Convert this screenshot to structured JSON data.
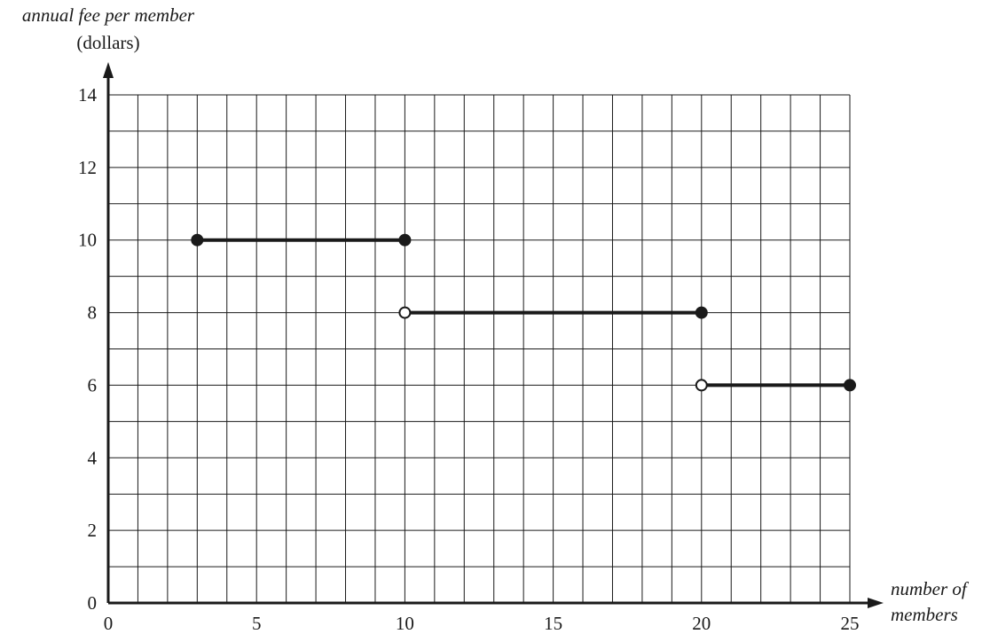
{
  "chart_data": {
    "type": "line",
    "ylabel": [
      "annual fee per member",
      "(dollars)"
    ],
    "xlabel": [
      "number of",
      "members"
    ],
    "xlim": [
      0,
      25
    ],
    "ylim": [
      0,
      14
    ],
    "x_ticks": [
      0,
      5,
      10,
      15,
      20,
      25
    ],
    "y_ticks": [
      0,
      2,
      4,
      6,
      8,
      10,
      12,
      14
    ],
    "grid": true,
    "grid_step_x": 1,
    "grid_step_y": 1,
    "series": [
      {
        "x": [
          3,
          10
        ],
        "y": [
          10,
          10
        ],
        "endpoints": [
          "closed",
          "closed"
        ]
      },
      {
        "x": [
          10,
          20
        ],
        "y": [
          8,
          8
        ],
        "endpoints": [
          "open",
          "closed"
        ]
      },
      {
        "x": [
          20,
          25
        ],
        "y": [
          6,
          6
        ],
        "endpoints": [
          "open",
          "closed"
        ]
      }
    ]
  }
}
